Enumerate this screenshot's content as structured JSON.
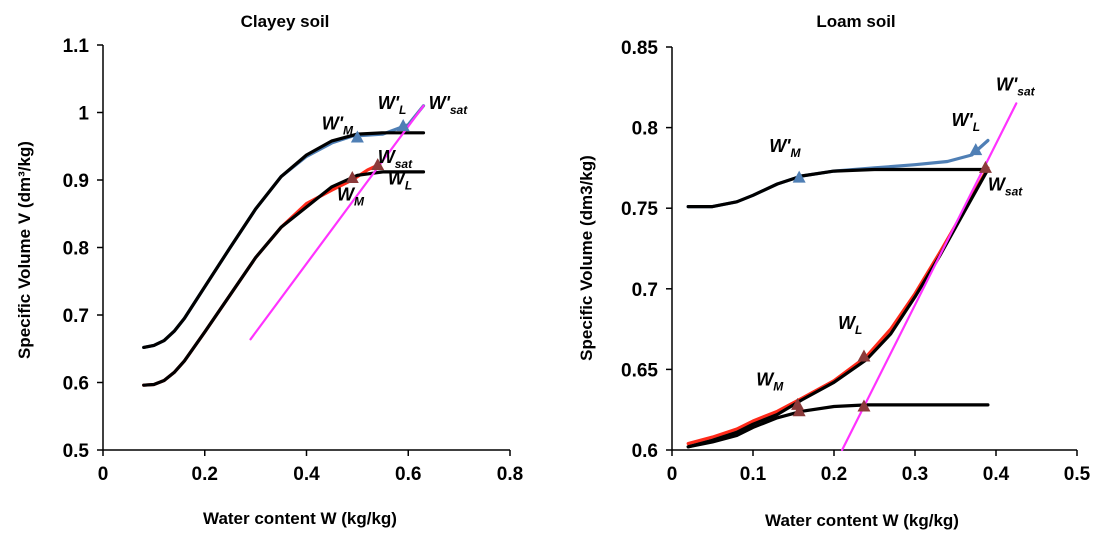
{
  "chart_data": [
    {
      "type": "line",
      "title": "Clayey soil",
      "xlabel": "Water content W (kg/kg)",
      "ylabel": "Specific Volume V (dm³/kg)",
      "xlim": [
        0,
        0.8
      ],
      "ylim": [
        0.5,
        1.1
      ],
      "x_ticks": [
        "0",
        "0.2",
        "0.4",
        "0.6",
        "0.8"
      ],
      "y_ticks": [
        "0.5",
        "0.6",
        "0.7",
        "0.8",
        "0.9",
        "1",
        "1.1"
      ],
      "grid": false,
      "series": [
        {
          "color": "#4f7fb5",
          "points": [
            [
              0.08,
              0.652
            ],
            [
              0.1,
              0.655
            ],
            [
              0.12,
              0.662
            ],
            [
              0.14,
              0.676
            ],
            [
              0.16,
              0.695
            ],
            [
              0.2,
              0.742
            ],
            [
              0.25,
              0.8
            ],
            [
              0.3,
              0.857
            ],
            [
              0.35,
              0.905
            ],
            [
              0.4,
              0.935
            ],
            [
              0.45,
              0.955
            ],
            [
              0.49,
              0.965
            ],
            [
              0.55,
              0.968
            ],
            [
              0.6,
              0.982
            ],
            [
              0.63,
              1.01
            ]
          ]
        },
        {
          "color": "#000000",
          "points": [
            [
              0.08,
              0.652
            ],
            [
              0.1,
              0.655
            ],
            [
              0.12,
              0.662
            ],
            [
              0.14,
              0.676
            ],
            [
              0.16,
              0.695
            ],
            [
              0.2,
              0.742
            ],
            [
              0.25,
              0.8
            ],
            [
              0.3,
              0.857
            ],
            [
              0.35,
              0.905
            ],
            [
              0.4,
              0.937
            ],
            [
              0.45,
              0.958
            ],
            [
              0.5,
              0.968
            ],
            [
              0.55,
              0.97
            ],
            [
              0.63,
              0.97
            ]
          ]
        },
        {
          "color": "#ff2a1a",
          "points": [
            [
              0.08,
              0.596
            ],
            [
              0.1,
              0.597
            ],
            [
              0.12,
              0.603
            ],
            [
              0.14,
              0.615
            ],
            [
              0.16,
              0.632
            ],
            [
              0.2,
              0.675
            ],
            [
              0.25,
              0.73
            ],
            [
              0.3,
              0.785
            ],
            [
              0.35,
              0.83
            ],
            [
              0.4,
              0.865
            ],
            [
              0.45,
              0.885
            ],
            [
              0.49,
              0.9
            ],
            [
              0.52,
              0.915
            ],
            [
              0.54,
              0.922
            ]
          ]
        },
        {
          "color": "#000000",
          "points": [
            [
              0.08,
              0.596
            ],
            [
              0.1,
              0.597
            ],
            [
              0.12,
              0.603
            ],
            [
              0.14,
              0.615
            ],
            [
              0.16,
              0.632
            ],
            [
              0.2,
              0.675
            ],
            [
              0.25,
              0.73
            ],
            [
              0.3,
              0.785
            ],
            [
              0.35,
              0.83
            ],
            [
              0.4,
              0.86
            ],
            [
              0.45,
              0.89
            ],
            [
              0.5,
              0.907
            ],
            [
              0.55,
              0.912
            ],
            [
              0.63,
              0.912
            ]
          ]
        },
        {
          "color": "#ff33ff",
          "points": [
            [
              0.29,
              0.664
            ],
            [
              0.63,
              1.01
            ]
          ]
        }
      ],
      "markers": [
        {
          "x": 0.5,
          "y": 0.963,
          "color": "#4f7fb5"
        },
        {
          "x": 0.59,
          "y": 0.98,
          "color": "#4f7fb5"
        },
        {
          "x": 0.49,
          "y": 0.903,
          "color": "#8b3a3a"
        },
        {
          "x": 0.54,
          "y": 0.922,
          "color": "#8b3a3a"
        }
      ],
      "annotations": [
        {
          "base": "W'",
          "sub": "M",
          "x": 0.43,
          "y": 0.975
        },
        {
          "base": "W'",
          "sub": "L",
          "x": 0.54,
          "y": 1.005
        },
        {
          "base": "W'",
          "sub": "sat",
          "x": 0.64,
          "y": 1.005
        },
        {
          "base": "W",
          "sub": "sat",
          "x": 0.54,
          "y": 0.925
        },
        {
          "base": "W",
          "sub": "L",
          "x": 0.56,
          "y": 0.893
        },
        {
          "base": "W",
          "sub": "M",
          "x": 0.46,
          "y": 0.87
        }
      ]
    },
    {
      "type": "line",
      "title": "Loam soil",
      "xlabel": "Water content W (kg/kg)",
      "ylabel": "Specific Volume (dm3/kg)",
      "xlim": [
        0,
        0.5
      ],
      "ylim": [
        0.6,
        0.85
      ],
      "x_ticks": [
        "0",
        "0.1",
        "0.2",
        "0.3",
        "0.4",
        "0.5"
      ],
      "y_ticks": [
        "0.6",
        "0.65",
        "0.7",
        "0.75",
        "0.8",
        "0.85"
      ],
      "grid": false,
      "series": [
        {
          "color": "#4f7fb5",
          "points": [
            [
              0.02,
              0.751
            ],
            [
              0.05,
              0.751
            ],
            [
              0.08,
              0.754
            ],
            [
              0.1,
              0.758
            ],
            [
              0.13,
              0.765
            ],
            [
              0.16,
              0.77
            ],
            [
              0.2,
              0.773
            ],
            [
              0.25,
              0.775
            ],
            [
              0.3,
              0.777
            ],
            [
              0.34,
              0.779
            ],
            [
              0.37,
              0.783
            ],
            [
              0.39,
              0.792
            ]
          ]
        },
        {
          "color": "#000000",
          "points": [
            [
              0.02,
              0.751
            ],
            [
              0.05,
              0.751
            ],
            [
              0.08,
              0.754
            ],
            [
              0.1,
              0.758
            ],
            [
              0.13,
              0.765
            ],
            [
              0.16,
              0.77
            ],
            [
              0.2,
              0.773
            ],
            [
              0.25,
              0.774
            ],
            [
              0.3,
              0.774
            ],
            [
              0.39,
              0.774
            ]
          ]
        },
        {
          "color": "#ff2a1a",
          "points": [
            [
              0.02,
              0.604
            ],
            [
              0.05,
              0.608
            ],
            [
              0.08,
              0.613
            ],
            [
              0.1,
              0.618
            ],
            [
              0.13,
              0.624
            ],
            [
              0.16,
              0.632
            ],
            [
              0.2,
              0.643
            ],
            [
              0.24,
              0.658
            ],
            [
              0.27,
              0.675
            ],
            [
              0.3,
              0.697
            ],
            [
              0.33,
              0.722
            ],
            [
              0.36,
              0.748
            ],
            [
              0.39,
              0.775
            ]
          ]
        },
        {
          "color": "#000000",
          "points": [
            [
              0.02,
              0.602
            ],
            [
              0.05,
              0.606
            ],
            [
              0.08,
              0.611
            ],
            [
              0.1,
              0.616
            ],
            [
              0.13,
              0.622
            ],
            [
              0.16,
              0.631
            ],
            [
              0.2,
              0.642
            ],
            [
              0.24,
              0.656
            ],
            [
              0.27,
              0.672
            ],
            [
              0.3,
              0.695
            ],
            [
              0.33,
              0.72
            ],
            [
              0.36,
              0.747
            ],
            [
              0.39,
              0.774
            ]
          ]
        },
        {
          "color": "#000000",
          "points": [
            [
              0.02,
              0.602
            ],
            [
              0.05,
              0.605
            ],
            [
              0.08,
              0.609
            ],
            [
              0.1,
              0.614
            ],
            [
              0.13,
              0.62
            ],
            [
              0.16,
              0.624
            ],
            [
              0.2,
              0.627
            ],
            [
              0.24,
              0.628
            ],
            [
              0.3,
              0.628
            ],
            [
              0.39,
              0.628
            ]
          ]
        },
        {
          "color": "#ff33ff",
          "points": [
            [
              0.21,
              0.6
            ],
            [
              0.425,
              0.815
            ]
          ]
        }
      ],
      "markers": [
        {
          "x": 0.157,
          "y": 0.769,
          "color": "#4f7fb5"
        },
        {
          "x": 0.375,
          "y": 0.786,
          "color": "#4f7fb5"
        },
        {
          "x": 0.387,
          "y": 0.775,
          "color": "#8b3a3a"
        },
        {
          "x": 0.237,
          "y": 0.658,
          "color": "#8b3a3a"
        },
        {
          "x": 0.155,
          "y": 0.628,
          "color": "#8b3a3a"
        },
        {
          "x": 0.157,
          "y": 0.624,
          "color": "#8b3a3a"
        },
        {
          "x": 0.237,
          "y": 0.627,
          "color": "#8b3a3a"
        }
      ],
      "annotations": [
        {
          "base": "W'",
          "sub": "M",
          "x": 0.12,
          "y": 0.785
        },
        {
          "base": "W'",
          "sub": "L",
          "x": 0.345,
          "y": 0.801
        },
        {
          "base": "W'",
          "sub": "sat",
          "x": 0.4,
          "y": 0.823
        },
        {
          "base": "W",
          "sub": "sat",
          "x": 0.39,
          "y": 0.761
        },
        {
          "base": "W",
          "sub": "L",
          "x": 0.205,
          "y": 0.675
        },
        {
          "base": "W",
          "sub": "M",
          "x": 0.104,
          "y": 0.64
        }
      ]
    }
  ]
}
